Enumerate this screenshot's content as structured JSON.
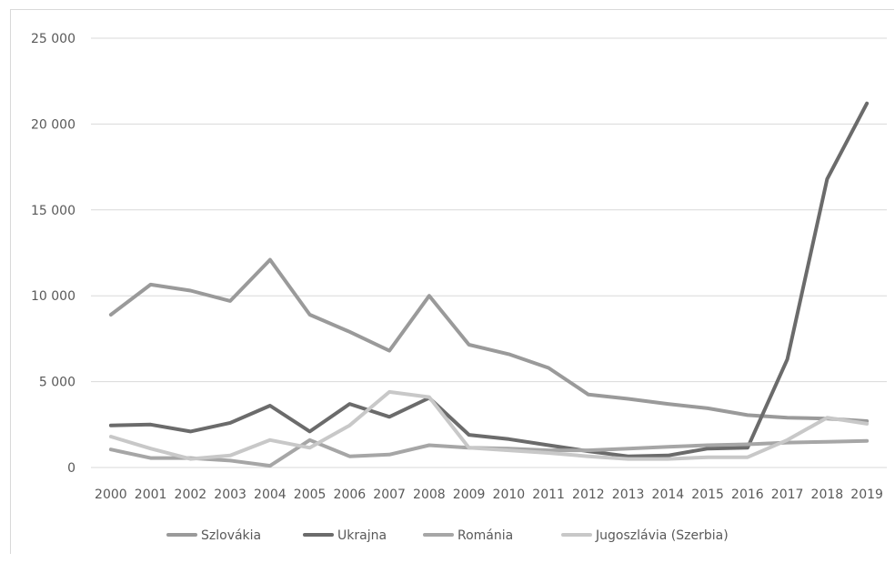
{
  "chart_data": {
    "type": "line",
    "title": "",
    "xlabel": "",
    "ylabel": "",
    "categories": [
      "2000",
      "2001",
      "2002",
      "2003",
      "2004",
      "2005",
      "2006",
      "2007",
      "2008",
      "2009",
      "2010",
      "2011",
      "2012",
      "2013",
      "2014",
      "2015",
      "2016",
      "2017",
      "2018",
      "2019"
    ],
    "y_ticks": [
      0,
      5000,
      10000,
      15000,
      20000,
      25000
    ],
    "y_tick_labels": [
      "0",
      "5 000",
      "10 000",
      "15 000",
      "20 000",
      "25 000"
    ],
    "ylim": [
      0,
      25000
    ],
    "grid": true,
    "legend_position": "bottom",
    "series": [
      {
        "name": "Szlovákia",
        "color": "#9a9a9a",
        "values": [
          8900,
          10650,
          10300,
          9700,
          12100,
          8900,
          7900,
          6800,
          10000,
          7150,
          6600,
          5800,
          4250,
          4000,
          3700,
          3450,
          3050,
          2900,
          2850,
          2700
        ]
      },
      {
        "name": "Ukrajna",
        "color": "#6b6b6b",
        "values": [
          2450,
          2500,
          2100,
          2600,
          3600,
          2100,
          3700,
          2950,
          4050,
          1900,
          1650,
          1300,
          950,
          650,
          700,
          1100,
          1150,
          6300,
          16800,
          21200
        ]
      },
      {
        "name": "Románia",
        "color": "#a6a6a6",
        "values": [
          1050,
          550,
          550,
          400,
          100,
          1600,
          650,
          750,
          1300,
          1150,
          1100,
          1000,
          1000,
          1100,
          1200,
          1300,
          1350,
          1450,
          1500,
          1550
        ]
      },
      {
        "name": "Jugoszlávia (Szerbia)",
        "color": "#c8c8c8",
        "values": [
          1800,
          1100,
          500,
          700,
          1600,
          1150,
          2450,
          4400,
          4100,
          1150,
          1000,
          850,
          650,
          500,
          500,
          600,
          600,
          1600,
          2900,
          2550
        ]
      }
    ]
  }
}
